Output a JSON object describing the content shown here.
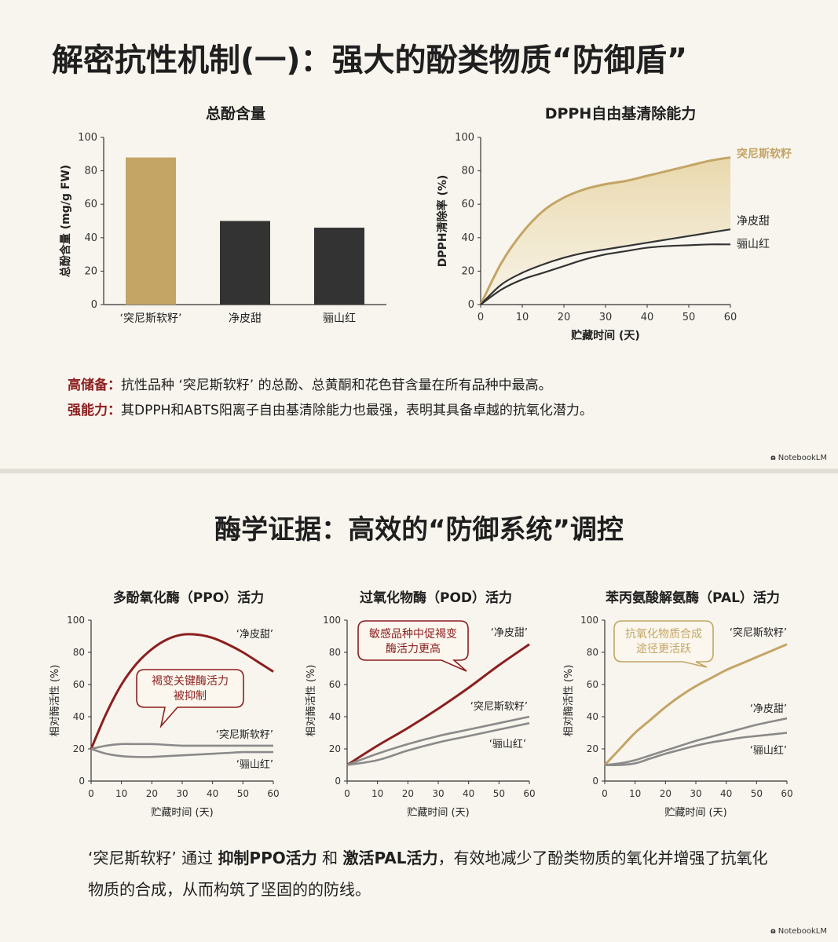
{
  "slide1": {
    "title": "解密抗性机制(一)：强大的酚类物质“防御盾”",
    "notes": [
      {
        "label": "高储备：",
        "text": "抗性品种 ‘突尼斯软籽’ 的总酚、总黄酮和花色苷含量在所有品种中最高。"
      },
      {
        "label": "强能力：",
        "text": "其DPPH和ABTS阳离子自由基清除能力也最强，表明其具备卓越的抗氧化潜力。"
      }
    ],
    "logo": "NotebookLM"
  },
  "slide2": {
    "title": "酶学证据：高效的“防御系统”调控",
    "summary": {
      "p1": "‘突尼斯软籽’ 通过 ",
      "b1": "抑制PPO活力",
      "p2": " 和 ",
      "b2": "激活PAL活力",
      "p3": "，有效地减少了酚类物质的氧化并增强了抗氧化物质的合成，从而构筑了坚固的的防线。"
    },
    "logo": "NotebookLM"
  },
  "colors": {
    "gold": "#c4a566",
    "dark": "#333333",
    "red": "#8b1f1f",
    "gray": "#8a8a8a"
  },
  "chart_data": [
    {
      "id": "phenol",
      "type": "bar",
      "title": "总酚含量",
      "ylabel": "总酚含量 (mg/g FW)",
      "xlabel": "",
      "categories": [
        "‘突尼斯软籽’",
        "净皮甜",
        "骊山红"
      ],
      "values": [
        88,
        50,
        46
      ],
      "colors": [
        "#c4a566",
        "#333333",
        "#333333"
      ],
      "ylim": [
        0,
        100
      ],
      "yticks": [
        0,
        20,
        40,
        60,
        80,
        100
      ]
    },
    {
      "id": "dpph",
      "type": "line",
      "title": "DPPH自由基清除能力",
      "ylabel": "DPPH清除率 (%)",
      "xlabel": "贮藏时间 (天)",
      "xlim": [
        0,
        60
      ],
      "ylim": [
        0,
        100
      ],
      "xticks": [
        0,
        10,
        20,
        30,
        40,
        50,
        60
      ],
      "yticks": [
        0,
        20,
        40,
        60,
        80,
        100
      ],
      "series": [
        {
          "name": "突尼斯软籽",
          "color": "#c4a566",
          "x": [
            0,
            5,
            10,
            15,
            20,
            25,
            30,
            35,
            40,
            45,
            50,
            55,
            60
          ],
          "y": [
            0,
            25,
            43,
            56,
            64,
            69,
            72,
            74,
            77,
            80,
            83,
            86,
            88
          ]
        },
        {
          "name": "净皮甜",
          "color": "#333333",
          "x": [
            0,
            5,
            10,
            15,
            20,
            25,
            30,
            35,
            40,
            45,
            50,
            55,
            60
          ],
          "y": [
            0,
            12,
            19,
            24,
            28,
            31,
            33,
            35,
            37,
            39,
            41,
            43,
            45
          ]
        },
        {
          "name": "骊山红",
          "color": "#333333",
          "x": [
            0,
            5,
            10,
            15,
            20,
            25,
            30,
            35,
            40,
            45,
            50,
            55,
            60
          ],
          "y": [
            0,
            9,
            15,
            19,
            23,
            27,
            30,
            32,
            34,
            35,
            35.5,
            36,
            36
          ]
        }
      ],
      "fill_between": [
        0,
        1
      ]
    },
    {
      "id": "ppo",
      "type": "line",
      "title": "多酚氧化酶（PPO）活力",
      "ylabel": "相对酶活性 (%)",
      "xlabel": "贮藏时间 (天)",
      "xlim": [
        0,
        60
      ],
      "ylim": [
        0,
        100
      ],
      "xticks": [
        0,
        10,
        20,
        30,
        40,
        50,
        60
      ],
      "yticks": [
        0,
        20,
        40,
        60,
        80,
        100
      ],
      "series": [
        {
          "name": "‘净皮甜’",
          "color": "#8b1f1f",
          "x": [
            0,
            5,
            10,
            15,
            20,
            25,
            30,
            35,
            40,
            45,
            50,
            55,
            60
          ],
          "y": [
            20,
            42,
            60,
            73,
            82,
            88,
            91,
            91,
            89,
            85,
            80,
            74,
            68
          ]
        },
        {
          "name": "‘突尼斯软籽’",
          "color": "#8a8a8a",
          "x": [
            0,
            5,
            10,
            15,
            20,
            25,
            30,
            35,
            40,
            45,
            50,
            55,
            60
          ],
          "y": [
            20,
            22,
            23,
            23,
            23,
            22.5,
            22,
            22,
            22,
            22,
            22,
            22,
            22
          ]
        },
        {
          "name": "‘骊山红’",
          "color": "#8a8a8a",
          "x": [
            0,
            5,
            10,
            15,
            20,
            25,
            30,
            35,
            40,
            45,
            50,
            55,
            60
          ],
          "y": [
            20,
            17,
            15.5,
            15,
            15,
            15.5,
            16,
            16.5,
            17,
            17.5,
            18,
            18,
            18
          ]
        }
      ],
      "annotation": {
        "text_lines": [
          "褐变关键酶活力",
          "被抑制"
        ],
        "color": "#8b1f1f"
      }
    },
    {
      "id": "pod",
      "type": "line",
      "title": "过氧化物酶（POD）活力",
      "ylabel": "相对酶活性 (%)",
      "xlabel": "贮藏时间 (天)",
      "xlim": [
        0,
        60
      ],
      "ylim": [
        0,
        100
      ],
      "xticks": [
        0,
        10,
        20,
        30,
        40,
        50,
        60
      ],
      "yticks": [
        0,
        20,
        40,
        60,
        80,
        100
      ],
      "series": [
        {
          "name": "‘净皮甜’",
          "color": "#8b1f1f",
          "x": [
            0,
            10,
            20,
            30,
            40,
            50,
            60
          ],
          "y": [
            10,
            22,
            33,
            45,
            58,
            72,
            85
          ]
        },
        {
          "name": "‘突尼斯软籽’",
          "color": "#8a8a8a",
          "x": [
            0,
            10,
            20,
            30,
            40,
            50,
            60
          ],
          "y": [
            10,
            17,
            23,
            28,
            32,
            36,
            40
          ]
        },
        {
          "name": "‘骊山红’",
          "color": "#8a8a8a",
          "x": [
            0,
            10,
            20,
            30,
            40,
            50,
            60
          ],
          "y": [
            10,
            13,
            19,
            24,
            28,
            32,
            36
          ]
        }
      ],
      "annotation": {
        "text_lines": [
          "敏感品种中促褐变",
          "酶活力更高"
        ],
        "color": "#8b1f1f"
      }
    },
    {
      "id": "pal",
      "type": "line",
      "title": "苯丙氨酸解氨酶（PAL）活力",
      "ylabel": "相对酶活性 (%)",
      "xlabel": "贮藏时间 (天)",
      "xlim": [
        0,
        60
      ],
      "ylim": [
        0,
        100
      ],
      "xticks": [
        0,
        10,
        20,
        30,
        40,
        50,
        60
      ],
      "yticks": [
        0,
        20,
        40,
        60,
        80,
        100
      ],
      "series": [
        {
          "name": "‘突尼斯软籽’",
          "color": "#c4a566",
          "x": [
            0,
            5,
            10,
            15,
            20,
            25,
            30,
            35,
            40,
            45,
            50,
            55,
            60
          ],
          "y": [
            10,
            20,
            30,
            38,
            46,
            53,
            59,
            64,
            69,
            73,
            77,
            81,
            85
          ]
        },
        {
          "name": "‘净皮甜’",
          "color": "#8a8a8a",
          "x": [
            0,
            5,
            10,
            15,
            20,
            25,
            30,
            35,
            40,
            45,
            50,
            55,
            60
          ],
          "y": [
            10,
            11,
            13,
            16,
            19,
            22,
            25,
            27.5,
            30,
            32.5,
            35,
            37,
            39
          ]
        },
        {
          "name": "‘骊山红’",
          "color": "#8a8a8a",
          "x": [
            0,
            5,
            10,
            15,
            20,
            25,
            30,
            35,
            40,
            45,
            50,
            55,
            60
          ],
          "y": [
            10,
            10,
            11,
            14,
            17,
            19.5,
            22,
            24,
            25.5,
            27,
            28,
            29,
            30
          ]
        }
      ],
      "annotation": {
        "text_lines": [
          "抗氧化物质合成",
          "途径更活跃"
        ],
        "color": "#c4a566"
      }
    }
  ]
}
